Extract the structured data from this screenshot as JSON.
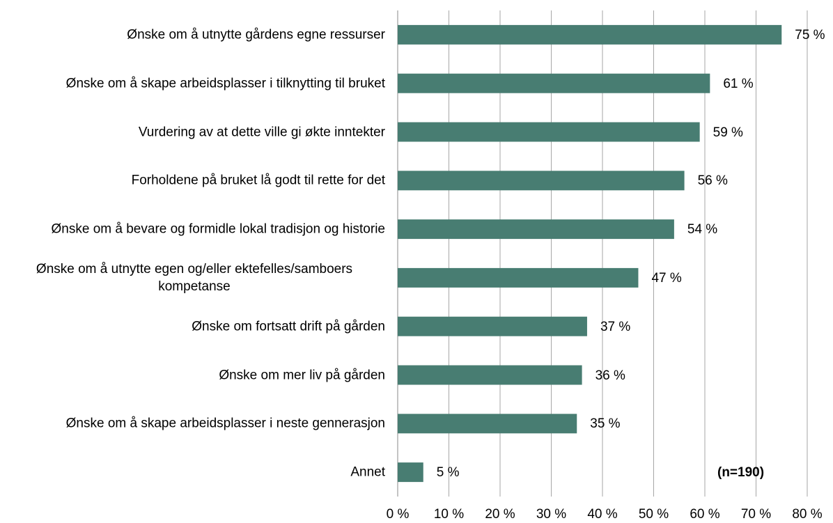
{
  "chart_data": {
    "type": "barh",
    "categories": [
      "Ønske om å utnytte gårdens egne ressurser",
      "Ønske om å skape arbeidsplasser i tilknytting til bruket",
      "Vurdering av at dette ville gi økte inntekter",
      "Forholdene på bruket lå godt til rette for det",
      "Ønske om å bevare og formidle lokal tradisjon og historie",
      "Ønske om å utnytte egen og/eller ektefelles/samboers kompetanse",
      "Ønske om fortsatt drift på gården",
      "Ønske om mer liv på gården",
      "Ønske om å skape arbeidsplasser i neste gennerasjon",
      "Annet"
    ],
    "values": [
      75,
      61,
      59,
      56,
      54,
      47,
      37,
      36,
      35,
      5
    ],
    "value_labels": [
      "75 %",
      "61 %",
      "59 %",
      "56 %",
      "54 %",
      "47 %",
      "37 %",
      "36 %",
      "35 %",
      "5 %"
    ],
    "color": "#487d72",
    "xlim": [
      0,
      80
    ],
    "xticks": [
      {
        "value": 0,
        "label": "0 %"
      },
      {
        "value": 10,
        "label": "10 %"
      },
      {
        "value": 20,
        "label": "20 %"
      },
      {
        "value": 30,
        "label": "30 %"
      },
      {
        "value": 40,
        "label": "40 %"
      },
      {
        "value": 50,
        "label": "50 %"
      },
      {
        "value": 60,
        "label": "60 %"
      },
      {
        "value": 70,
        "label": "70 %"
      },
      {
        "value": 80,
        "label": "80 %"
      }
    ],
    "grid": true,
    "annotation": "(n=190)"
  }
}
